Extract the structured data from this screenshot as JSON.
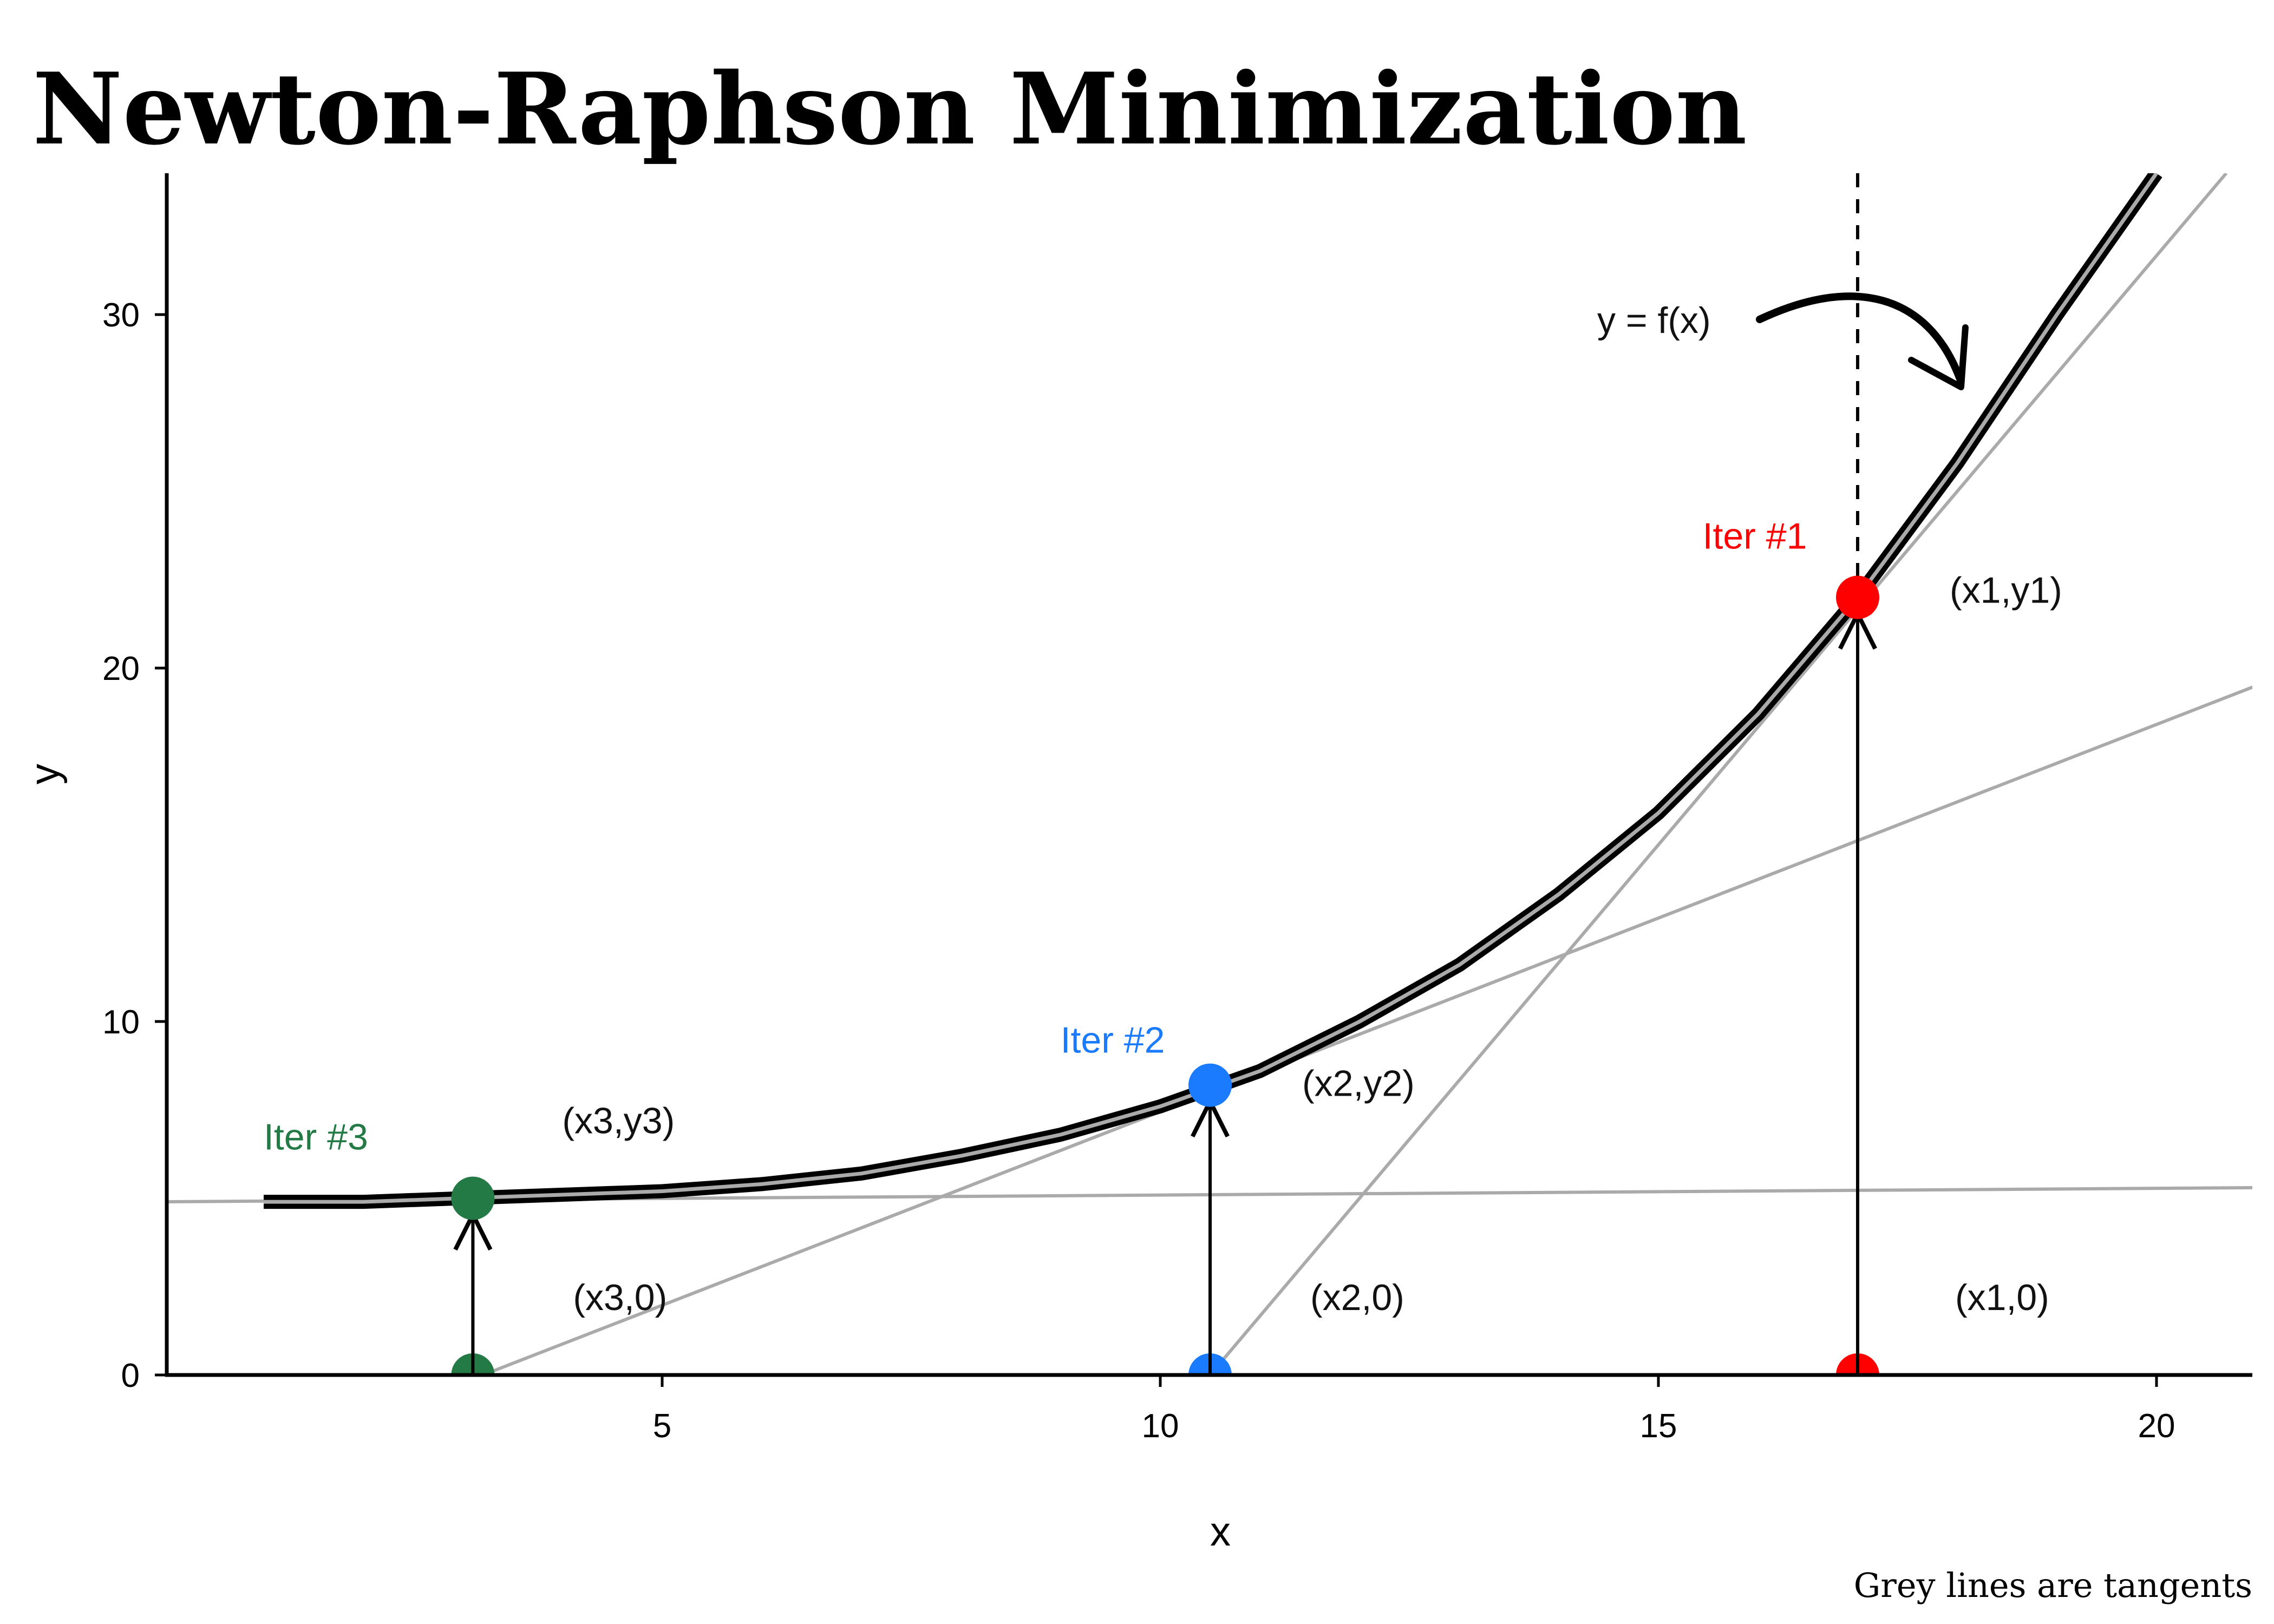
{
  "title": "Newton-Raphson Minimization",
  "caption": "Grey lines are tangents",
  "colors": {
    "iter1": "#ff0000",
    "iter2": "#1a7bff",
    "iter3": "#237a45",
    "tangent": "#aaaaaa",
    "curve": "#000000"
  },
  "chart_data": {
    "type": "line",
    "title": "Newton-Raphson Minimization",
    "xlabel": "x",
    "ylabel": "y",
    "xlim": [
      0,
      21
    ],
    "ylim": [
      0,
      34
    ],
    "xticks": [
      5,
      10,
      15,
      20
    ],
    "yticks": [
      0,
      10,
      20,
      30
    ],
    "grid": false,
    "curve": {
      "label": "y = f(x)",
      "x": [
        1,
        2,
        3,
        4,
        5,
        6,
        7,
        8,
        9,
        10,
        11,
        12,
        13,
        14,
        15,
        16,
        17,
        18,
        19,
        20
      ],
      "y": [
        4.9,
        4.9,
        5.0,
        5.1,
        5.2,
        5.4,
        5.7,
        6.2,
        6.8,
        7.6,
        8.6,
        10.0,
        11.6,
        13.6,
        15.9,
        18.7,
        22.0,
        25.8,
        30.0,
        34.0
      ]
    },
    "tangents": [
      {
        "through": [
          3.2,
          0.0
        ],
        "to": [
          21.0,
          19.5
        ]
      },
      {
        "through": [
          10.5,
          0.0
        ],
        "to": [
          20.7,
          34.0
        ]
      },
      {
        "from": [
          0.0,
          4.9
        ],
        "to": [
          21.0,
          5.3
        ]
      }
    ],
    "vertical_reference": {
      "x": 17.0,
      "label": "dashed"
    },
    "iterations": [
      {
        "label": "Iter #1",
        "x": 17.0,
        "y": 22.0,
        "color": "#ff0000",
        "point_label": "(x1,y1)",
        "base_label": "(x1,0)"
      },
      {
        "label": "Iter #2",
        "x": 10.5,
        "y": 8.2,
        "color": "#1a7bff",
        "point_label": "(x2,y2)",
        "base_label": "(x2,0)"
      },
      {
        "label": "Iter #3",
        "x": 3.1,
        "y": 5.0,
        "color": "#237a45",
        "point_label": "(x3,y3)",
        "base_label": "(x3,0)"
      }
    ]
  }
}
